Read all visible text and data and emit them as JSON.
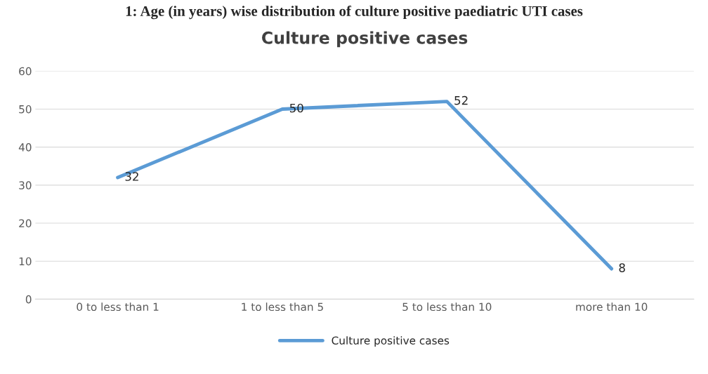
{
  "chart_data": {
    "type": "line",
    "title": "Culture positive cases",
    "annotations": [
      "1: Age (in years) wise distribution of culture positive paediatric UTI cases"
    ],
    "categories": [
      "0 to less than 1",
      "1 to less than 5",
      "5 to less than 10",
      "more than 10"
    ],
    "series": [
      {
        "name": "Culture positive cases",
        "color": "#5b9bd5",
        "values": [
          32,
          50,
          52,
          8
        ]
      }
    ],
    "ylim": [
      0,
      60
    ],
    "yticks": [
      0,
      10,
      20,
      30,
      40,
      50,
      60
    ],
    "grid": "y",
    "legend": "bottom",
    "data_labels": true,
    "marker": "none",
    "line_style": "solid"
  }
}
